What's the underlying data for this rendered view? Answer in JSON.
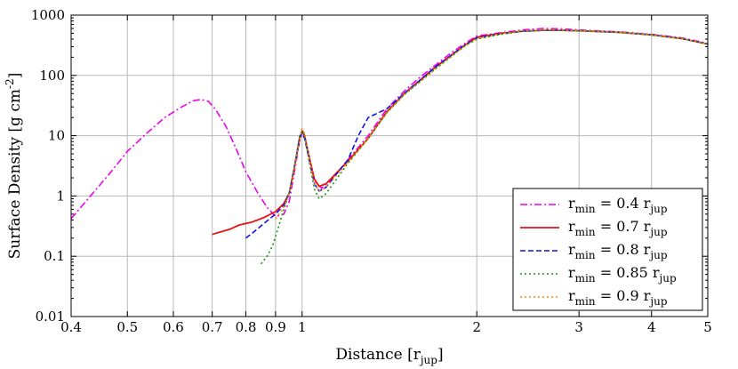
{
  "chart_data": {
    "type": "line",
    "title": "",
    "xlabel": {
      "base": "Distance [r",
      "sub": "jup",
      "end": "]"
    },
    "ylabel": {
      "base": "Surface Density [g cm",
      "sup": "-2",
      "end": "]"
    },
    "x_scale": "log",
    "y_scale": "log",
    "xlim": [
      0.4,
      5
    ],
    "ylim": [
      0.01,
      1000
    ],
    "x_ticks": [
      {
        "value": 0.4,
        "label": "0.4"
      },
      {
        "value": 0.5,
        "label": "0.5"
      },
      {
        "value": 0.6,
        "label": "0.6"
      },
      {
        "value": 0.7,
        "label": "0.7"
      },
      {
        "value": 0.8,
        "label": "0.8"
      },
      {
        "value": 0.9,
        "label": "0.9"
      },
      {
        "value": 1,
        "label": "1"
      },
      {
        "value": 2,
        "label": "2"
      },
      {
        "value": 3,
        "label": "3"
      },
      {
        "value": 4,
        "label": "4"
      },
      {
        "value": 5,
        "label": "5"
      }
    ],
    "y_ticks": [
      {
        "value": 0.01,
        "label": "0.01"
      },
      {
        "value": 0.1,
        "label": "0.1"
      },
      {
        "value": 1,
        "label": "1"
      },
      {
        "value": 10,
        "label": "10"
      },
      {
        "value": 100,
        "label": "100"
      },
      {
        "value": 1000,
        "label": "1000"
      }
    ],
    "grid": true,
    "legend_position": "bottom-right",
    "series": [
      {
        "legend": {
          "base": "r",
          "sub": "min",
          "mid": " = 0.4 r",
          "sub2": "jup"
        },
        "color": "#ee00ee",
        "dash": "dashdot",
        "points": [
          [
            0.4,
            0.42
          ],
          [
            0.43,
            0.95
          ],
          [
            0.47,
            2.6
          ],
          [
            0.5,
            5.5
          ],
          [
            0.54,
            11
          ],
          [
            0.58,
            20
          ],
          [
            0.62,
            30
          ],
          [
            0.65,
            38
          ],
          [
            0.67,
            40
          ],
          [
            0.69,
            37
          ],
          [
            0.71,
            27
          ],
          [
            0.74,
            14
          ],
          [
            0.77,
            6
          ],
          [
            0.8,
            2.5
          ],
          [
            0.84,
            1.1
          ],
          [
            0.87,
            0.65
          ],
          [
            0.9,
            0.46
          ],
          [
            0.93,
            0.5
          ],
          [
            0.95,
            0.8
          ],
          [
            0.97,
            2.5
          ],
          [
            0.99,
            8
          ],
          [
            1.0,
            11.5
          ],
          [
            1.01,
            10
          ],
          [
            1.03,
            4
          ],
          [
            1.05,
            1.8
          ],
          [
            1.08,
            1.35
          ],
          [
            1.12,
            1.8
          ],
          [
            1.2,
            4
          ],
          [
            1.3,
            10
          ],
          [
            1.4,
            28
          ],
          [
            1.5,
            55
          ],
          [
            1.6,
            95
          ],
          [
            1.7,
            150
          ],
          [
            1.8,
            230
          ],
          [
            1.9,
            330
          ],
          [
            2.0,
            450
          ],
          [
            2.2,
            510
          ],
          [
            2.4,
            570
          ],
          [
            2.6,
            600
          ],
          [
            2.8,
            590
          ],
          [
            3.0,
            570
          ],
          [
            3.5,
            530
          ],
          [
            4.0,
            480
          ],
          [
            4.5,
            420
          ],
          [
            5.0,
            340
          ]
        ]
      },
      {
        "legend": {
          "base": "r",
          "sub": "min",
          "mid": " = 0.7 r",
          "sub2": "jup"
        },
        "color": "#ee1111",
        "dash": "solid",
        "points": [
          [
            0.7,
            0.23
          ],
          [
            0.72,
            0.25
          ],
          [
            0.75,
            0.28
          ],
          [
            0.78,
            0.33
          ],
          [
            0.82,
            0.37
          ],
          [
            0.86,
            0.44
          ],
          [
            0.9,
            0.55
          ],
          [
            0.93,
            0.75
          ],
          [
            0.95,
            1.1
          ],
          [
            0.97,
            3
          ],
          [
            0.99,
            9
          ],
          [
            1.0,
            12
          ],
          [
            1.01,
            10
          ],
          [
            1.03,
            4.2
          ],
          [
            1.05,
            1.9
          ],
          [
            1.07,
            1.45
          ],
          [
            1.1,
            1.6
          ],
          [
            1.2,
            3.8
          ],
          [
            1.3,
            9
          ],
          [
            1.4,
            25
          ],
          [
            1.5,
            50
          ],
          [
            1.6,
            85
          ],
          [
            1.7,
            140
          ],
          [
            1.8,
            210
          ],
          [
            1.9,
            310
          ],
          [
            2.0,
            430
          ],
          [
            2.2,
            500
          ],
          [
            2.4,
            540
          ],
          [
            2.6,
            560
          ],
          [
            2.8,
            560
          ],
          [
            3.0,
            550
          ],
          [
            3.5,
            520
          ],
          [
            4.0,
            470
          ],
          [
            4.5,
            410
          ],
          [
            5.0,
            330
          ]
        ]
      },
      {
        "legend": {
          "base": "r",
          "sub": "min",
          "mid": " = 0.8 r",
          "sub2": "jup"
        },
        "color": "#1111ee",
        "dash": "dashed",
        "points": [
          [
            0.8,
            0.2
          ],
          [
            0.82,
            0.24
          ],
          [
            0.85,
            0.32
          ],
          [
            0.88,
            0.42
          ],
          [
            0.9,
            0.5
          ],
          [
            0.93,
            0.7
          ],
          [
            0.95,
            1.1
          ],
          [
            0.97,
            3
          ],
          [
            0.99,
            9
          ],
          [
            1.0,
            11
          ],
          [
            1.01,
            9
          ],
          [
            1.03,
            3.8
          ],
          [
            1.05,
            1.6
          ],
          [
            1.07,
            1.2
          ],
          [
            1.1,
            1.4
          ],
          [
            1.2,
            4
          ],
          [
            1.25,
            10
          ],
          [
            1.3,
            20
          ],
          [
            1.4,
            28
          ],
          [
            1.5,
            50
          ],
          [
            1.6,
            85
          ],
          [
            1.7,
            140
          ],
          [
            1.8,
            210
          ],
          [
            1.9,
            310
          ],
          [
            2.0,
            420
          ],
          [
            2.2,
            490
          ],
          [
            2.4,
            540
          ],
          [
            2.6,
            560
          ],
          [
            2.8,
            560
          ],
          [
            3.0,
            550
          ],
          [
            3.5,
            520
          ],
          [
            4.0,
            470
          ],
          [
            4.5,
            410
          ],
          [
            5.0,
            330
          ]
        ]
      },
      {
        "legend": {
          "base": "r",
          "sub": "min",
          "mid": " = 0.85 r",
          "sub2": "jup"
        },
        "color": "#119911",
        "dash": "dotted",
        "points": [
          [
            0.85,
            0.075
          ],
          [
            0.87,
            0.1
          ],
          [
            0.89,
            0.15
          ],
          [
            0.91,
            0.3
          ],
          [
            0.93,
            0.6
          ],
          [
            0.95,
            1.1
          ],
          [
            0.97,
            3
          ],
          [
            0.99,
            10
          ],
          [
            1.0,
            12
          ],
          [
            1.01,
            10
          ],
          [
            1.03,
            3.5
          ],
          [
            1.05,
            1.3
          ],
          [
            1.07,
            0.9
          ],
          [
            1.1,
            1.1
          ],
          [
            1.2,
            3.5
          ],
          [
            1.3,
            9
          ],
          [
            1.4,
            24
          ],
          [
            1.5,
            48
          ],
          [
            1.6,
            80
          ],
          [
            1.7,
            130
          ],
          [
            1.8,
            200
          ],
          [
            1.9,
            300
          ],
          [
            2.0,
            400
          ],
          [
            2.2,
            480
          ],
          [
            2.4,
            540
          ],
          [
            2.6,
            560
          ],
          [
            2.8,
            560
          ],
          [
            3.0,
            550
          ],
          [
            3.5,
            520
          ],
          [
            4.0,
            470
          ],
          [
            4.5,
            410
          ],
          [
            5.0,
            330
          ]
        ]
      },
      {
        "legend": {
          "base": "r",
          "sub": "min",
          "mid": " = 0.9 r",
          "sub2": "jup"
        },
        "color": "#ff8800",
        "dash": "dotted",
        "points": [
          [
            0.9,
            0.42
          ],
          [
            0.92,
            0.55
          ],
          [
            0.94,
            0.8
          ],
          [
            0.96,
            1.6
          ],
          [
            0.98,
            5
          ],
          [
            1.0,
            13
          ],
          [
            1.01,
            11
          ],
          [
            1.03,
            4
          ],
          [
            1.05,
            1.6
          ],
          [
            1.07,
            1.2
          ],
          [
            1.1,
            1.4
          ],
          [
            1.2,
            3.6
          ],
          [
            1.3,
            9
          ],
          [
            1.4,
            24
          ],
          [
            1.5,
            48
          ],
          [
            1.6,
            80
          ],
          [
            1.7,
            130
          ],
          [
            1.8,
            200
          ],
          [
            1.9,
            300
          ],
          [
            2.0,
            410
          ],
          [
            2.2,
            490
          ],
          [
            2.4,
            550
          ],
          [
            2.6,
            570
          ],
          [
            2.8,
            565
          ],
          [
            3.0,
            555
          ],
          [
            3.5,
            520
          ],
          [
            4.0,
            470
          ],
          [
            4.5,
            410
          ],
          [
            5.0,
            330
          ]
        ]
      }
    ]
  }
}
